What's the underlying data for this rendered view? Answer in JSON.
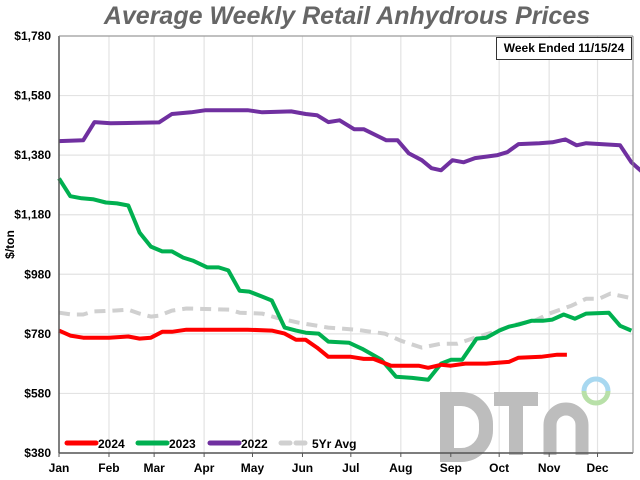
{
  "chart_data": {
    "type": "line",
    "title": "Average Weekly Retail Anhydrous Prices",
    "annotation": "Week Ended 11/15/24",
    "ylabel": "$/ton",
    "xlabel": "",
    "ylim": [
      380,
      1780
    ],
    "yticks": [
      "$1,780",
      "$1,580",
      "$1,380",
      "$1,180",
      "$980",
      "$780",
      "$580",
      "$380"
    ],
    "ytick_values": [
      1780,
      1580,
      1380,
      1180,
      980,
      780,
      580,
      380
    ],
    "xticks": [
      "Jan",
      "Feb",
      "Mar",
      "Apr",
      "May",
      "Jun",
      "Jul",
      "Aug",
      "Sep",
      "Oct",
      "Nov",
      "Dec"
    ],
    "grid": true,
    "legend_position": "bottom-left",
    "series": [
      {
        "name": "2024",
        "color": "#ff0000",
        "dashed": false,
        "points": [
          [
            "01-01",
            791
          ],
          [
            "01-08",
            774
          ],
          [
            "01-16",
            767
          ],
          [
            "02-01",
            767
          ],
          [
            "02-13",
            771
          ],
          [
            "02-20",
            764
          ],
          [
            "02-27",
            767
          ],
          [
            "03-06",
            787
          ],
          [
            "03-12",
            787
          ],
          [
            "03-21",
            794
          ],
          [
            "04-28",
            794
          ],
          [
            "05-13",
            791
          ],
          [
            "05-21",
            781
          ],
          [
            "05-28",
            760
          ],
          [
            "06-03",
            760
          ],
          [
            "06-10",
            734
          ],
          [
            "06-17",
            703
          ],
          [
            "07-01",
            703
          ],
          [
            "07-09",
            696
          ],
          [
            "07-15",
            696
          ],
          [
            "07-26",
            673
          ],
          [
            "08-12",
            673
          ],
          [
            "08-18",
            666
          ],
          [
            "08-26",
            676
          ],
          [
            "09-01",
            673
          ],
          [
            "09-10",
            680
          ],
          [
            "09-23",
            680
          ],
          [
            "10-07",
            686
          ],
          [
            "10-13",
            700
          ],
          [
            "10-27",
            703
          ],
          [
            "11-06",
            710
          ],
          [
            "11-12",
            710
          ]
        ]
      },
      {
        "name": "2023",
        "color": "#00b050",
        "dashed": false,
        "points": [
          [
            "01-01",
            1302
          ],
          [
            "01-08",
            1242
          ],
          [
            "01-15",
            1235
          ],
          [
            "01-22",
            1232
          ],
          [
            "01-30",
            1221
          ],
          [
            "02-06",
            1218
          ],
          [
            "02-13",
            1211
          ],
          [
            "02-20",
            1120
          ],
          [
            "02-27",
            1073
          ],
          [
            "03-06",
            1057
          ],
          [
            "03-12",
            1057
          ],
          [
            "03-19",
            1036
          ],
          [
            "03-25",
            1026
          ],
          [
            "04-03",
            1003
          ],
          [
            "04-10",
            1003
          ],
          [
            "04-16",
            993
          ],
          [
            "04-23",
            925
          ],
          [
            "04-29",
            922
          ],
          [
            "05-07",
            905
          ],
          [
            "05-13",
            892
          ],
          [
            "05-21",
            801
          ],
          [
            "05-28",
            791
          ],
          [
            "06-03",
            784
          ],
          [
            "06-11",
            781
          ],
          [
            "06-17",
            754
          ],
          [
            "06-30",
            750
          ],
          [
            "07-08",
            730
          ],
          [
            "07-20",
            693
          ],
          [
            "07-29",
            636
          ],
          [
            "08-08",
            632
          ],
          [
            "08-18",
            626
          ],
          [
            "08-26",
            680
          ],
          [
            "09-01",
            693
          ],
          [
            "09-08",
            693
          ],
          [
            "09-17",
            764
          ],
          [
            "09-23",
            767
          ],
          [
            "10-01",
            791
          ],
          [
            "10-07",
            804
          ],
          [
            "10-13",
            811
          ],
          [
            "10-21",
            824
          ],
          [
            "10-28",
            824
          ],
          [
            "11-03",
            828
          ],
          [
            "11-10",
            845
          ],
          [
            "11-17",
            831
          ],
          [
            "11-24",
            848
          ],
          [
            "12-08",
            851
          ],
          [
            "12-15",
            807
          ],
          [
            "12-22",
            791
          ]
        ]
      },
      {
        "name": "2022",
        "color": "#7030a0",
        "dashed": false,
        "points": [
          [
            "01-01",
            1427
          ],
          [
            "01-16",
            1430
          ],
          [
            "01-23",
            1491
          ],
          [
            "02-02",
            1487
          ],
          [
            "03-04",
            1490
          ],
          [
            "03-12",
            1518
          ],
          [
            "03-24",
            1524
          ],
          [
            "04-02",
            1531
          ],
          [
            "04-28",
            1531
          ],
          [
            "05-07",
            1524
          ],
          [
            "05-25",
            1527
          ],
          [
            "06-03",
            1518
          ],
          [
            "06-10",
            1514
          ],
          [
            "06-17",
            1491
          ],
          [
            "06-24",
            1497
          ],
          [
            "07-03",
            1467
          ],
          [
            "07-09",
            1467
          ],
          [
            "07-23",
            1430
          ],
          [
            "07-30",
            1430
          ],
          [
            "08-06",
            1386
          ],
          [
            "08-14",
            1363
          ],
          [
            "08-20",
            1336
          ],
          [
            "08-26",
            1329
          ],
          [
            "09-02",
            1363
          ],
          [
            "09-09",
            1356
          ],
          [
            "09-16",
            1370
          ],
          [
            "09-30",
            1380
          ],
          [
            "10-06",
            1390
          ],
          [
            "10-13",
            1417
          ],
          [
            "10-26",
            1420
          ],
          [
            "11-03",
            1423
          ],
          [
            "11-11",
            1433
          ],
          [
            "11-18",
            1413
          ],
          [
            "11-24",
            1420
          ],
          [
            "12-15",
            1413
          ],
          [
            "12-22",
            1356
          ],
          [
            "12-29",
            1322
          ]
        ]
      },
      {
        "name": "5Yr Avg",
        "color": "#d0d0d0",
        "dashed": true,
        "points": [
          [
            "01-01",
            851
          ],
          [
            "01-09",
            845
          ],
          [
            "01-16",
            845
          ],
          [
            "01-22",
            855
          ],
          [
            "02-04",
            858
          ],
          [
            "02-13",
            861
          ],
          [
            "02-20",
            848
          ],
          [
            "02-27",
            838
          ],
          [
            "03-04",
            841
          ],
          [
            "03-12",
            858
          ],
          [
            "03-21",
            865
          ],
          [
            "04-17",
            861
          ],
          [
            "04-23",
            851
          ],
          [
            "05-07",
            848
          ],
          [
            "05-16",
            834
          ],
          [
            "05-30",
            817
          ],
          [
            "06-17",
            801
          ],
          [
            "07-04",
            794
          ],
          [
            "07-22",
            781
          ],
          [
            "08-01",
            757
          ],
          [
            "08-14",
            734
          ],
          [
            "08-26",
            747
          ],
          [
            "09-05",
            747
          ],
          [
            "09-16",
            767
          ],
          [
            "09-28",
            787
          ],
          [
            "10-11",
            811
          ],
          [
            "10-23",
            824
          ],
          [
            "11-01",
            848
          ],
          [
            "11-15",
            875
          ],
          [
            "11-24",
            898
          ],
          [
            "12-02",
            898
          ],
          [
            "12-09",
            915
          ],
          [
            "12-20",
            902
          ]
        ]
      }
    ]
  },
  "watermark": {
    "text": "DTN",
    "ring_top_color": "#a8d8f0",
    "ring_bottom_color": "#b8e0a8"
  }
}
